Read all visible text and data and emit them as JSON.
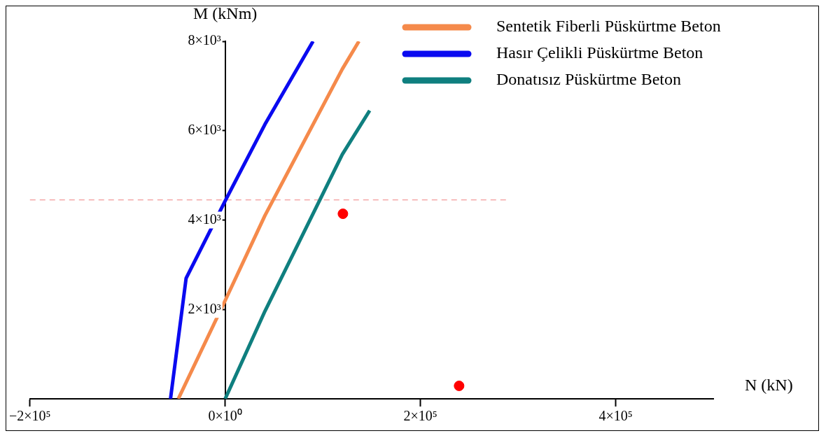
{
  "chart_data": {
    "type": "line",
    "xlabel": "N (kN)",
    "ylabel": "M (kNm)",
    "xlim": [
      -200000,
      500000
    ],
    "ylim": [
      0,
      8000
    ],
    "xticks": [
      {
        "value": -200000,
        "label": "−2×10⁵"
      },
      {
        "value": 0,
        "label": "0×10⁰"
      },
      {
        "value": 200000,
        "label": "2×10⁵"
      },
      {
        "value": 400000,
        "label": "4×10⁵"
      }
    ],
    "yticks": [
      {
        "value": 2000,
        "label": "2×10³"
      },
      {
        "value": 4000,
        "label": "4×10³"
      },
      {
        "value": 6000,
        "label": "6×10³"
      },
      {
        "value": 8000,
        "label": "8×10³"
      }
    ],
    "grid": false,
    "legend": "top right",
    "line_style": "solid",
    "series": [
      {
        "name": "Sentetik Fiberli Püskürtme Beton",
        "color": "#f58a4b",
        "x": [
          -48000,
          0,
          40700,
          120000,
          137000
        ],
        "values": [
          0,
          2200,
          4100,
          7380,
          8000
        ]
      },
      {
        "name": "Hasır Çelikli Püskürtme Beton",
        "color": "#0a0af0",
        "x": [
          -56000,
          -40000,
          0,
          40700,
          90000
        ],
        "values": [
          0,
          2700,
          4430,
          6140,
          8000
        ]
      },
      {
        "name": "Donatısız Püskürtme Beton",
        "color": "#0f7f7f",
        "x": [
          0,
          40700,
          120000,
          148000
        ],
        "values": [
          0,
          1960,
          5470,
          6450
        ]
      },
      {
        "type": "scatter",
        "marker": "circle",
        "color": "#ff0000",
        "x": [
          120600,
          239600
        ],
        "values": [
          4140,
          290
        ]
      }
    ],
    "ref_lines": [
      {
        "axis": "y",
        "value": 4450,
        "color": "#f08080",
        "line_style": "dashed"
      }
    ]
  }
}
